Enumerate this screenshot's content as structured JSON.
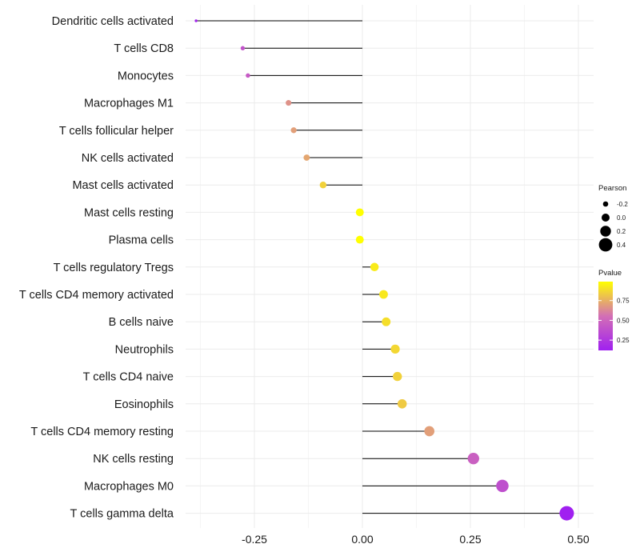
{
  "chart_data": {
    "type": "lollipop",
    "xlim": [
      -0.41,
      0.51
    ],
    "x_ticks": [
      -0.25,
      0.0,
      0.25,
      0.5
    ],
    "x_tick_labels": [
      "-0.25",
      "0.00",
      "0.25",
      "0.50"
    ],
    "categories": [
      "Dendritic cells activated",
      "T cells CD8",
      "Monocytes",
      "Macrophages M1",
      "T cells follicular helper",
      "NK cells activated",
      "Mast cells activated",
      "Mast cells resting",
      "Plasma cells",
      "T cells regulatory  Tregs",
      "T cells CD4 memory activated",
      "B cells naive",
      "Neutrophils",
      "T cells CD4 naive",
      "Eosinophils",
      "T cells CD4 memory resting",
      "NK cells resting",
      "Macrophages M0",
      "T cells gamma delta"
    ],
    "pearson": [
      -0.385,
      -0.277,
      -0.265,
      -0.171,
      -0.159,
      -0.129,
      -0.091,
      -0.006,
      -0.006,
      0.028,
      0.049,
      0.055,
      0.076,
      0.081,
      0.092,
      0.155,
      0.257,
      0.324,
      0.473
    ],
    "pvalue": [
      0.14,
      0.4,
      0.44,
      0.66,
      0.7,
      0.72,
      0.85,
      0.99,
      0.99,
      0.93,
      0.92,
      0.89,
      0.87,
      0.85,
      0.83,
      0.7,
      0.47,
      0.38,
      0.12
    ],
    "legend": {
      "size_title": "Pearson",
      "size_values": [
        -0.2,
        0.0,
        0.2,
        0.4
      ],
      "size_labels": [
        "-0.2",
        "0.0",
        "0.2",
        "0.4"
      ],
      "color_title": "Pvalue",
      "color_ticks": [
        0.25,
        0.5,
        0.75
      ],
      "color_tick_labels": [
        "0.25",
        "0.50",
        "0.75"
      ],
      "color_range": [
        0.12,
        0.99
      ],
      "color_low": "#a020f0",
      "color_mid": "#d36fb5",
      "color_high": "#ffff00"
    },
    "grid": true,
    "legend_position": "right",
    "colors": {
      "segment": "#000000",
      "grid": "#ebebeb"
    }
  }
}
